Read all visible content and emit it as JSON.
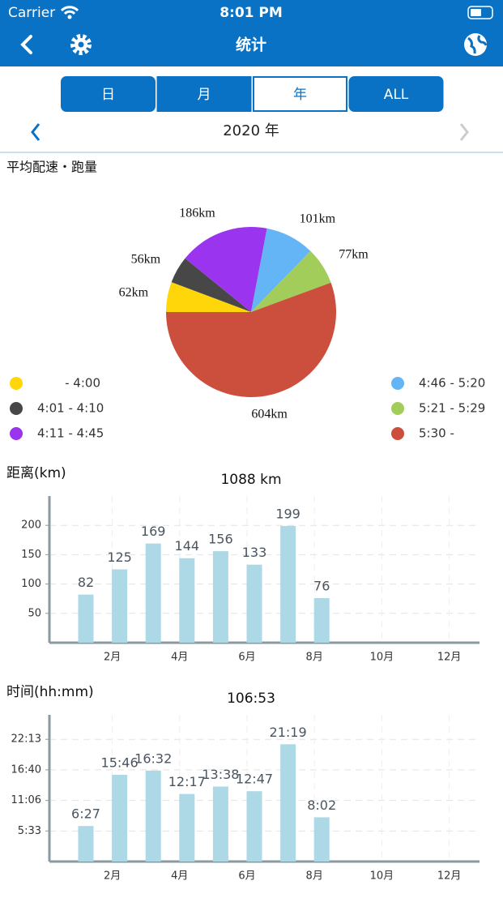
{
  "status_bar": {
    "carrier": "Carrier",
    "time": "8:01 PM"
  },
  "nav": {
    "title": "统计"
  },
  "tabs": {
    "items": [
      "日",
      "月",
      "年",
      "ALL"
    ],
    "selected": 2
  },
  "period": "2020 年",
  "chart_data": [
    {
      "type": "pie",
      "title": "平均配速・跑量",
      "categories": [
        "- 4:00",
        "4:01 - 4:10",
        "4:11 - 4:45",
        "4:46 - 5:20",
        "5:21 - 5:29",
        "5:30 -"
      ],
      "values": [
        62,
        56,
        186,
        101,
        77,
        604
      ],
      "value_labels": [
        "62km",
        "56km",
        "186km",
        "101km",
        "77km",
        "604km"
      ],
      "colors": [
        "#ffd60a",
        "#474747",
        "#9b34ef",
        "#64b5f6",
        "#a2cd5a",
        "#cc4e3c"
      ],
      "legend": "bottom"
    },
    {
      "type": "bar",
      "y_label": "距离(km)",
      "title": "1088 km",
      "categories": [
        null,
        "2月",
        null,
        "4月",
        null,
        "6月",
        null,
        "8月",
        null,
        "10月",
        null,
        "12月"
      ],
      "values": [
        82,
        125,
        169,
        144,
        156,
        133,
        199,
        76,
        null,
        null,
        null,
        null
      ],
      "color": "#add8e6",
      "ylim": [
        0,
        250
      ],
      "yticks": [
        50,
        100,
        150,
        200
      ],
      "grid": true
    },
    {
      "type": "bar",
      "y_label": "时间(hh:mm)",
      "title": "106:53",
      "categories": [
        null,
        "2月",
        null,
        "4月",
        null,
        "6月",
        null,
        "8月",
        null,
        "10月",
        null,
        "12月"
      ],
      "values": [
        387,
        946,
        992,
        737,
        818,
        767,
        1279,
        482,
        null,
        null,
        null,
        null
      ],
      "value_labels": [
        "6:27",
        "15:46",
        "16:32",
        "12:17",
        "13:38",
        "12:47",
        "21:19",
        "8:02",
        null,
        null,
        null,
        null
      ],
      "color": "#add8e6",
      "ylim": [
        0,
        1600
      ],
      "yticks": [
        {
          "value": 333,
          "label": "5:33"
        },
        {
          "value": 666,
          "label": "11:06"
        },
        {
          "value": 1000,
          "label": "16:40"
        },
        {
          "value": 1333,
          "label": "22:13"
        }
      ],
      "grid": true
    }
  ]
}
